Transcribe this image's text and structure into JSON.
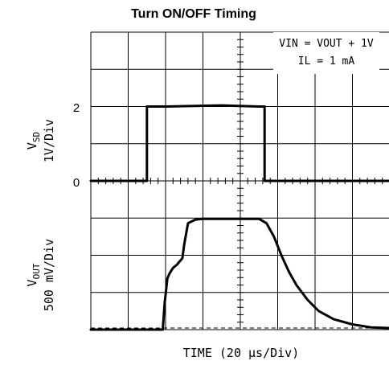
{
  "chart_data": {
    "type": "line",
    "title": "Turn ON/OFF Timing",
    "xlabel": "TIME (20 µs/Div)",
    "x_unit_per_div": 20,
    "x_divisions": 8,
    "y_divisions": 8,
    "conditions": [
      "VIN = VOUT + 1V",
      "IL = 1 mA"
    ],
    "channels": [
      {
        "name": "VSD",
        "label_main": "V",
        "label_sub": "SD",
        "scale": "1V/Div",
        "scale_per_div": 1,
        "ylim": [
          0,
          4
        ],
        "ticks": [
          "2",
          "0"
        ],
        "x": [
          0,
          30,
          30,
          40,
          70,
          90,
          93,
          93,
          160
        ],
        "y": [
          0,
          0,
          2.0,
          2.0,
          2.03,
          2.0,
          2.0,
          0,
          0
        ]
      },
      {
        "name": "VOUT",
        "label_main": "V",
        "label_sub": "OUT",
        "scale": "500 mV/Div",
        "scale_per_div": 500,
        "ylim": [
          0,
          2000
        ],
        "x": [
          0,
          38.5,
          39.5,
          41,
          42,
          44,
          46,
          49,
          50,
          52,
          56,
          60,
          90,
          94,
          98,
          102,
          106,
          110,
          116,
          122,
          130,
          140,
          150,
          160
        ],
        "y": [
          0,
          0,
          350,
          690,
          750,
          830,
          870,
          960,
          1150,
          1430,
          1480,
          1490,
          1490,
          1430,
          1250,
          1000,
          780,
          600,
          400,
          250,
          140,
          70,
          30,
          20
        ]
      }
    ]
  }
}
